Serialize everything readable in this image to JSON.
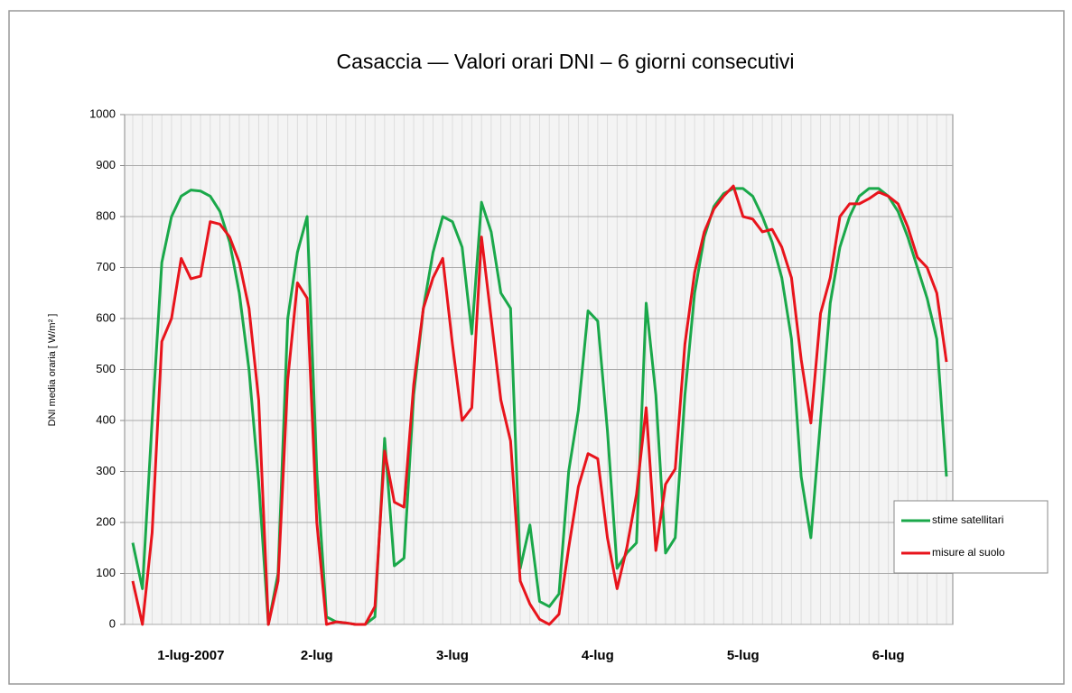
{
  "chart_data": {
    "type": "line",
    "title": "Casaccia — Valori orari DNI – 6 giorni consecutivi",
    "y_label": "DNI media oraria [ W/m² ]",
    "categories": [
      null,
      null,
      null,
      null,
      null,
      null,
      "1-lug-2007",
      null,
      null,
      null,
      null,
      null,
      null,
      null,
      null,
      null,
      null,
      null,
      null,
      "2-lug",
      null,
      null,
      null,
      null,
      null,
      null,
      null,
      null,
      null,
      null,
      null,
      null,
      null,
      "3-lug",
      null,
      null,
      null,
      null,
      null,
      null,
      null,
      null,
      null,
      null,
      null,
      null,
      null,
      null,
      "4-lug",
      null,
      null,
      null,
      null,
      null,
      null,
      null,
      null,
      null,
      null,
      null,
      null,
      null,
      null,
      "5-lug",
      null,
      null,
      null,
      null,
      null,
      null,
      null,
      null,
      null,
      null,
      null,
      null,
      null,
      null,
      "6-lug",
      null,
      null,
      null,
      null,
      null,
      null
    ],
    "series": [
      {
        "name": "stime satellitari",
        "color": "#1aa84a",
        "values": [
          160,
          70,
          400,
          710,
          800,
          840,
          852,
          850,
          840,
          810,
          750,
          650,
          500,
          280,
          0,
          100,
          600,
          730,
          800,
          300,
          15,
          5,
          3,
          0,
          0,
          15,
          365,
          115,
          130,
          450,
          620,
          730,
          800,
          790,
          740,
          570,
          828,
          770,
          650,
          620,
          110,
          195,
          45,
          35,
          60,
          300,
          420,
          615,
          595,
          380,
          110,
          140,
          160,
          630,
          450,
          140,
          170,
          450,
          650,
          760,
          820,
          845,
          855,
          855,
          840,
          800,
          750,
          680,
          560,
          290,
          170,
          400,
          630,
          740,
          800,
          840,
          855,
          855,
          840,
          810,
          760,
          700,
          640,
          560,
          290
        ]
      },
      {
        "name": "misure al suolo",
        "color": "#e8141c",
        "values": [
          85,
          0,
          180,
          555,
          600,
          718,
          678,
          683,
          790,
          785,
          760,
          710,
          620,
          440,
          0,
          85,
          480,
          670,
          640,
          200,
          0,
          5,
          3,
          0,
          0,
          35,
          340,
          240,
          230,
          470,
          620,
          680,
          718,
          550,
          400,
          425,
          760,
          600,
          440,
          360,
          85,
          40,
          10,
          0,
          20,
          150,
          270,
          335,
          325,
          170,
          70,
          150,
          255,
          425,
          145,
          275,
          305,
          550,
          690,
          770,
          815,
          840,
          860,
          800,
          795,
          770,
          775,
          740,
          680,
          520,
          395,
          610,
          680,
          800,
          825,
          825,
          835,
          848,
          840,
          825,
          780,
          720,
          700,
          650,
          515
        ]
      }
    ],
    "ylim": [
      0,
      1000
    ],
    "yticks": [
      0,
      100,
      200,
      300,
      400,
      500,
      600,
      700,
      800,
      900,
      1000
    ],
    "grid": true,
    "legend": "right"
  }
}
